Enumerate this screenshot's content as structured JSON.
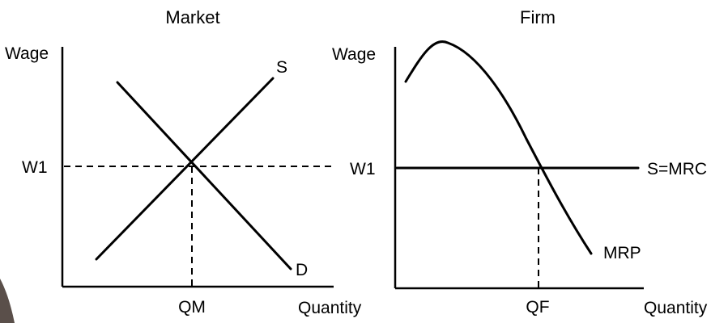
{
  "market": {
    "title": "Market",
    "y_axis_label": "Wage",
    "x_axis_label": "Quantity",
    "wage_level_label": "W1",
    "quantity_level_label": "QM",
    "supply_label": "S",
    "demand_label": "D"
  },
  "firm": {
    "title": "Firm",
    "y_axis_label": "Wage",
    "x_axis_label": "Quantity",
    "wage_level_label": "W1",
    "quantity_level_label": "QF",
    "supply_label": "S=MRC",
    "mrp_label": "MRP"
  },
  "colors": {
    "line": "#000000",
    "background": "#ffffff"
  }
}
